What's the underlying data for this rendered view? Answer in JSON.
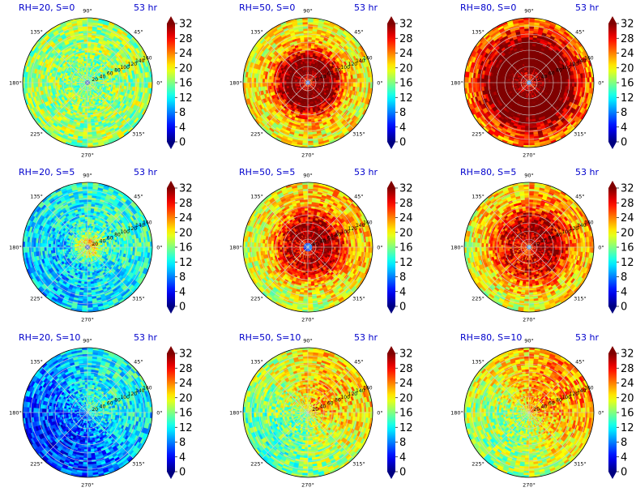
{
  "chart_data": {
    "type": "heatmap",
    "layout": "3x3 grid of polar plots, each with its own colorbar on the right",
    "colormap": "jet",
    "colorbar": {
      "range": [
        0,
        32
      ],
      "ticks": [
        "0",
        "4",
        "8",
        "12",
        "16",
        "20",
        "24",
        "28",
        "32"
      ],
      "extend": "both"
    },
    "angle_ticks": [
      "90°",
      "45°",
      "0°",
      "315°",
      "270°",
      "225°",
      "180°",
      "135°"
    ],
    "radial_ticks": [
      "20",
      "40",
      "60",
      "80",
      "100",
      "120",
      "140",
      "160"
    ],
    "radial_max": 160,
    "panels": [
      {
        "label": "RH=20, S=0",
        "time": "53 hr",
        "rh": 20,
        "s": 0,
        "center_min_radius": 8,
        "ring_peak": 16,
        "ring_center": 20,
        "ring_width": 38,
        "ambient": 17,
        "inner_value": 3
      },
      {
        "label": "RH=50, S=0",
        "time": "53 hr",
        "rh": 50,
        "s": 0,
        "center_min_radius": 8,
        "ring_peak": 34,
        "ring_center": 42,
        "ring_width": 45,
        "ambient": 20,
        "inner_value": 6
      },
      {
        "label": "RH=80, S=0",
        "time": "53 hr",
        "rh": 80,
        "s": 0,
        "center_min_radius": 8,
        "ring_peak": 36,
        "ring_center": 65,
        "ring_width": 65,
        "ambient": 22,
        "inner_value": 8
      },
      {
        "label": "RH=20, S=5",
        "time": "53 hr",
        "rh": 20,
        "s": 5,
        "center_min_radius": 8,
        "ring_peak": 20,
        "ring_center": 15,
        "ring_width": 20,
        "ambient": 12,
        "inner_value": 3
      },
      {
        "label": "RH=50, S=5",
        "time": "53 hr",
        "rh": 50,
        "s": 5,
        "center_min_radius": 10,
        "ring_peak": 31,
        "ring_center": 40,
        "ring_width": 50,
        "ambient": 20,
        "inner_value": 6
      },
      {
        "label": "RH=80, S=5",
        "time": "53 hr",
        "rh": 80,
        "s": 5,
        "center_min_radius": 8,
        "ring_peak": 30,
        "ring_center": 45,
        "ring_width": 60,
        "ambient": 20,
        "inner_value": 8
      },
      {
        "label": "RH=20, S=10",
        "time": "53 hr",
        "rh": 20,
        "s": 10,
        "center_min_radius": 0,
        "ring_peak": 10,
        "ring_center": 30,
        "ring_width": 40,
        "ambient": 9,
        "inner_value": 9
      },
      {
        "label": "RH=50, S=10",
        "time": "53 hr",
        "rh": 50,
        "s": 10,
        "center_min_radius": 0,
        "ring_peak": 19,
        "ring_center": 40,
        "ring_width": 60,
        "ambient": 18,
        "inner_value": 10
      },
      {
        "label": "RH=80, S=10",
        "time": "53 hr",
        "rh": 80,
        "s": 10,
        "center_min_radius": 0,
        "ring_peak": 20,
        "ring_center": 40,
        "ring_width": 60,
        "ambient": 20,
        "inner_value": 10
      }
    ]
  }
}
